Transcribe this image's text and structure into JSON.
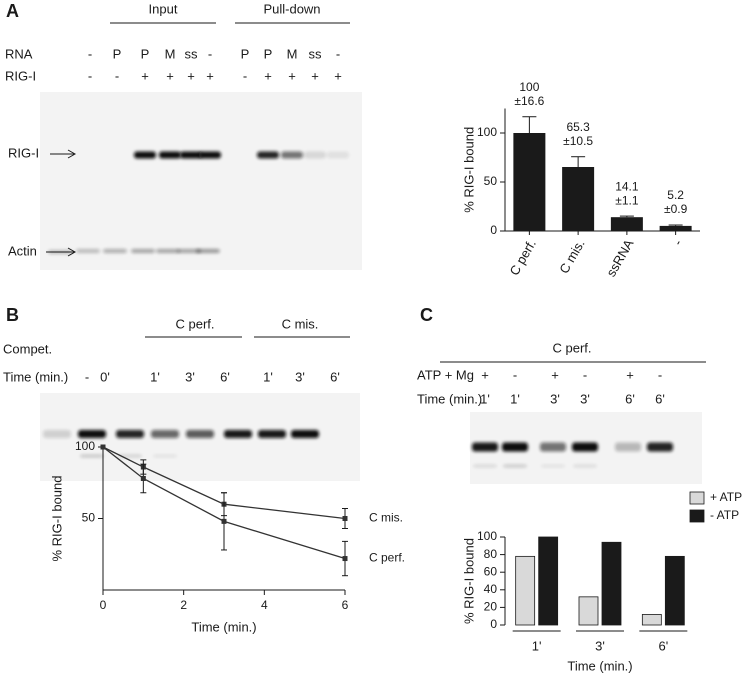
{
  "panel_labels": [
    "A",
    "B",
    "C"
  ],
  "panel_a": {
    "groups": [
      "Input",
      "Pull-down"
    ],
    "rows": [
      {
        "label": "RNA",
        "lanes": [
          "-",
          "P",
          "P",
          "M",
          "ss",
          "-",
          "P",
          "P",
          "M",
          "ss",
          "-"
        ]
      },
      {
        "label": "RIG-I",
        "lanes": [
          "-",
          "-",
          "+",
          "+",
          "+",
          "+",
          "-",
          "+",
          "+",
          "+",
          "+"
        ]
      }
    ],
    "bands": [
      "RIG-I",
      "Actin"
    ]
  },
  "panel_b": {
    "group_label": "Compet.",
    "groups": [
      "C perf.",
      "C mis."
    ],
    "time_label": "Time (min.)",
    "lanes": [
      "-",
      "0'",
      "1'",
      "3'",
      "6'",
      "1'",
      "3'",
      "6'"
    ]
  },
  "panel_c": {
    "group": "C perf.",
    "rows": [
      {
        "label": "ATP + Mg",
        "lanes": [
          "+",
          "-",
          "+",
          "-",
          "+",
          "-"
        ]
      },
      {
        "label": "Time (min.)",
        "lanes": [
          "1'",
          "1'",
          "3'",
          "3'",
          "6'",
          "6'"
        ]
      }
    ]
  },
  "chart_data": [
    {
      "type": "bar",
      "ylabel": "% RIG-I bound",
      "categories": [
        "C perf.",
        "C mis.",
        "ssRNA",
        "-"
      ],
      "values": [
        100,
        65.3,
        14.1,
        5.2
      ],
      "errors": [
        16.6,
        10.5,
        1.1,
        0.9
      ],
      "error_labels": [
        "±16.6",
        "±10.5",
        "±1.1",
        "±0.9"
      ],
      "color": "#1a1a1a",
      "ylim": [
        0,
        125
      ],
      "yticks": [
        0,
        50,
        100
      ]
    },
    {
      "type": "line",
      "xlabel": "Time (min.)",
      "ylabel": "% RIG-I bound",
      "x": [
        0,
        1,
        3,
        6
      ],
      "series": [
        {
          "name": "C mis.",
          "color": "#333333",
          "values": [
            100,
            86,
            60,
            50
          ],
          "errors": [
            0,
            5,
            8,
            7
          ]
        },
        {
          "name": "C perf.",
          "color": "#333333",
          "values": [
            100,
            78,
            48,
            22
          ],
          "errors": [
            0,
            10,
            20,
            12
          ]
        }
      ],
      "xlim": [
        0,
        6
      ],
      "xticks": [
        0,
        2,
        4,
        6
      ],
      "ylim": [
        0,
        100
      ],
      "yticks": [
        50,
        100
      ]
    },
    {
      "type": "grouped_bar",
      "xlabel": "Time (min.)",
      "ylabel": "% RIG-I bound",
      "categories": [
        "1'",
        "3'",
        "6'"
      ],
      "series": [
        {
          "name": "+ ATP",
          "color": "#d9d9d9",
          "values": [
            78,
            32,
            12
          ]
        },
        {
          "name": "- ATP",
          "color": "#1a1a1a",
          "values": [
            100,
            94,
            78
          ]
        }
      ],
      "ylim": [
        0,
        100
      ],
      "yticks": [
        0,
        20,
        40,
        60,
        80,
        100
      ],
      "legend": "upper right"
    }
  ]
}
